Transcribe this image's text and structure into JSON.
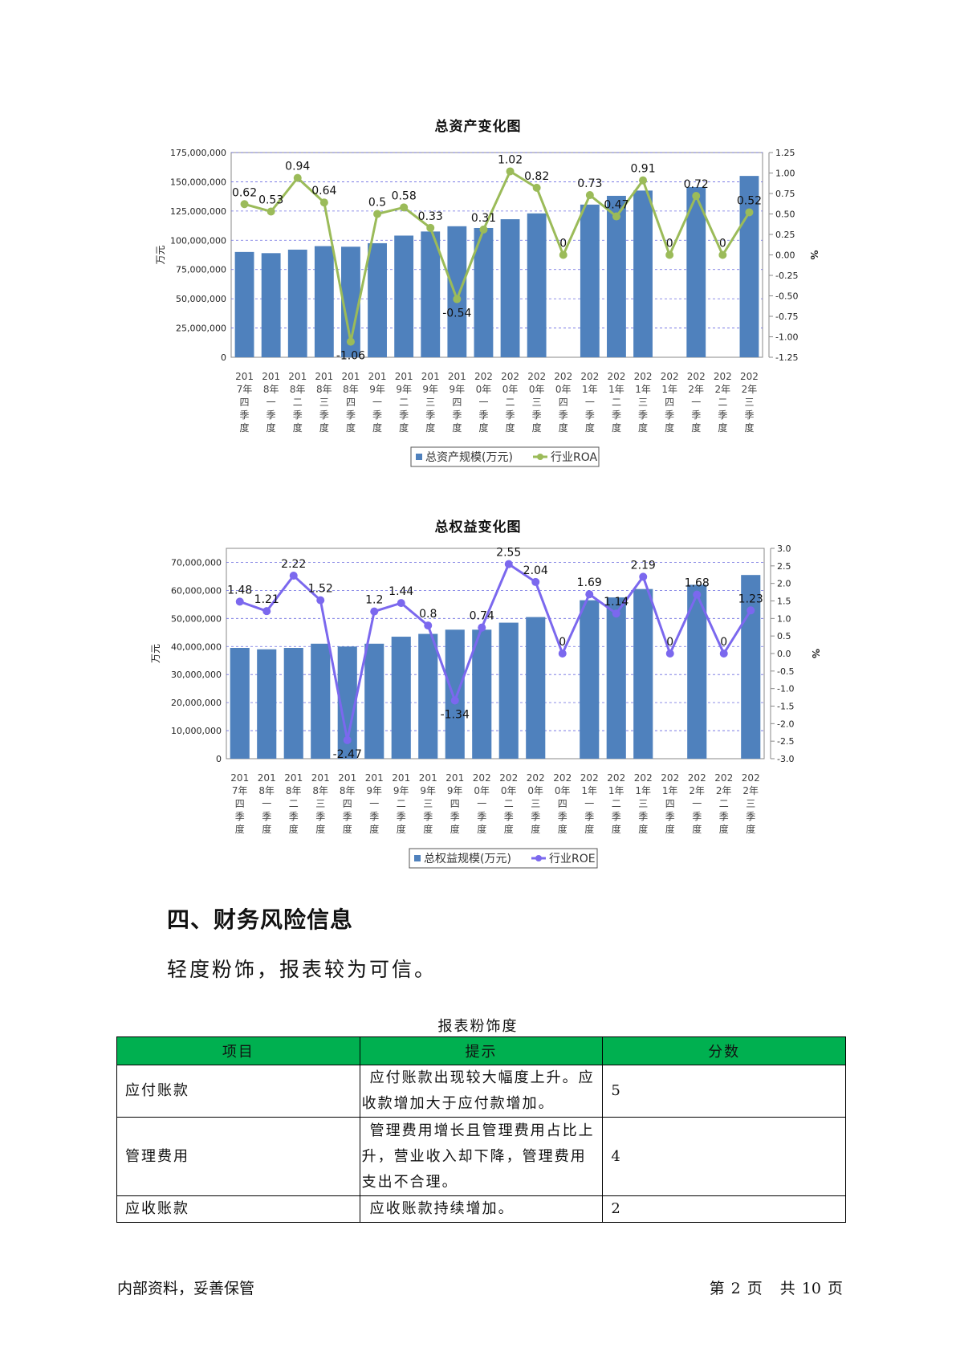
{
  "charts": {
    "assets": {
      "title": "总资产变化图",
      "left_axis_label": "万元",
      "right_axis_label": "%",
      "legend_bar": "总资产规模(万元)",
      "legend_line": "行业ROA"
    },
    "equity": {
      "title": "总权益变化图",
      "left_axis_label": "万元",
      "right_axis_label": "%",
      "legend_bar": "总权益规模(万元)",
      "legend_line": "行业ROE"
    }
  },
  "chart_data": [
    {
      "type": "bar+line",
      "title": "总资产变化图",
      "categories": [
        "2017年四季度",
        "2018年一季度",
        "2018年二季度",
        "2018年三季度",
        "2018年四季度",
        "2019年一季度",
        "2019年二季度",
        "2019年三季度",
        "2019年四季度",
        "2020年一季度",
        "2020年二季度",
        "2020年三季度",
        "2020年四季度",
        "2021年一季度",
        "2021年二季度",
        "2021年三季度",
        "2021年四季度",
        "2022年一季度",
        "2022年二季度",
        "2022年三季度"
      ],
      "category_lines": [
        [
          "201",
          "7年",
          "四",
          "季",
          "度"
        ],
        [
          "201",
          "8年",
          "一",
          "季",
          "度"
        ],
        [
          "201",
          "8年",
          "二",
          "季",
          "度"
        ],
        [
          "201",
          "8年",
          "三",
          "季",
          "度"
        ],
        [
          "201",
          "8年",
          "四",
          "季",
          "度"
        ],
        [
          "201",
          "9年",
          "一",
          "季",
          "度"
        ],
        [
          "201",
          "9年",
          "二",
          "季",
          "度"
        ],
        [
          "201",
          "9年",
          "三",
          "季",
          "度"
        ],
        [
          "201",
          "9年",
          "四",
          "季",
          "度"
        ],
        [
          "202",
          "0年",
          "一",
          "季",
          "度"
        ],
        [
          "202",
          "0年",
          "二",
          "季",
          "度"
        ],
        [
          "202",
          "0年",
          "三",
          "季",
          "度"
        ],
        [
          "202",
          "0年",
          "四",
          "季",
          "度"
        ],
        [
          "202",
          "1年",
          "一",
          "季",
          "度"
        ],
        [
          "202",
          "1年",
          "二",
          "季",
          "度"
        ],
        [
          "202",
          "1年",
          "三",
          "季",
          "度"
        ],
        [
          "202",
          "1年",
          "四",
          "季",
          "度"
        ],
        [
          "202",
          "2年",
          "一",
          "季",
          "度"
        ],
        [
          "202",
          "2年",
          "二",
          "季",
          "度"
        ],
        [
          "202",
          "2年",
          "三",
          "季",
          "度"
        ]
      ],
      "series": [
        {
          "name": "总资产规模(万元)",
          "kind": "bar",
          "axis": "left",
          "color": "#4f81bd",
          "values": [
            90000000,
            89000000,
            92000000,
            95000000,
            94500000,
            97500000,
            104000000,
            107500000,
            112000000,
            110500000,
            118000000,
            123000000,
            null,
            130500000,
            138000000,
            142500000,
            null,
            145500000,
            null,
            155000000
          ]
        },
        {
          "name": "行业ROA",
          "kind": "line",
          "axis": "right",
          "color": "#9bbb59",
          "values": [
            0.62,
            0.53,
            0.94,
            0.64,
            -1.06,
            0.5,
            0.58,
            0.33,
            -0.54,
            0.31,
            1.02,
            0.82,
            0,
            0.73,
            0.47,
            0.91,
            0,
            0.72,
            0,
            0.52
          ],
          "labels": [
            "0.62",
            "0.53",
            "0.94",
            "0.64",
            "-1.06",
            "0.5",
            "0.58",
            "0.33",
            "-0.54",
            "0.31",
            "1.02",
            "0.82",
            "0",
            "0.73",
            "0.47",
            "0.91",
            "0",
            "0.72",
            "0",
            "0.52"
          ]
        }
      ],
      "ylim_left": [
        0,
        175000000
      ],
      "yticks_left": [
        "0",
        "25,000,000",
        "50,000,000",
        "75,000,000",
        "100,000,000",
        "125,000,000",
        "150,000,000",
        "175,000,000"
      ],
      "ylim_right": [
        -1.25,
        1.25
      ],
      "yticks_right": [
        "-1.25",
        "-1.00",
        "-0.75",
        "-0.50",
        "-0.25",
        "0.00",
        "0.25",
        "0.50",
        "0.75",
        "1.00",
        "1.25"
      ],
      "grid": true,
      "legend": "bottom"
    },
    {
      "type": "bar+line",
      "title": "总权益变化图",
      "categories": [
        "2017年四季度",
        "2018年一季度",
        "2018年二季度",
        "2018年三季度",
        "2018年四季度",
        "2019年一季度",
        "2019年二季度",
        "2019年三季度",
        "2019年四季度",
        "2020年一季度",
        "2020年二季度",
        "2020年三季度",
        "2020年四季度",
        "2021年一季度",
        "2021年二季度",
        "2021年三季度",
        "2021年四季度",
        "2022年一季度",
        "2022年二季度",
        "2022年三季度"
      ],
      "category_lines": [
        [
          "201",
          "7年",
          "四",
          "季",
          "度"
        ],
        [
          "201",
          "8年",
          "一",
          "季",
          "度"
        ],
        [
          "201",
          "8年",
          "二",
          "季",
          "度"
        ],
        [
          "201",
          "8年",
          "三",
          "季",
          "度"
        ],
        [
          "201",
          "8年",
          "四",
          "季",
          "度"
        ],
        [
          "201",
          "9年",
          "一",
          "季",
          "度"
        ],
        [
          "201",
          "9年",
          "二",
          "季",
          "度"
        ],
        [
          "201",
          "9年",
          "三",
          "季",
          "度"
        ],
        [
          "201",
          "9年",
          "四",
          "季",
          "度"
        ],
        [
          "202",
          "0年",
          "一",
          "季",
          "度"
        ],
        [
          "202",
          "0年",
          "二",
          "季",
          "度"
        ],
        [
          "202",
          "0年",
          "三",
          "季",
          "度"
        ],
        [
          "202",
          "0年",
          "四",
          "季",
          "度"
        ],
        [
          "202",
          "1年",
          "一",
          "季",
          "度"
        ],
        [
          "202",
          "1年",
          "二",
          "季",
          "度"
        ],
        [
          "202",
          "1年",
          "三",
          "季",
          "度"
        ],
        [
          "202",
          "1年",
          "四",
          "季",
          "度"
        ],
        [
          "202",
          "2年",
          "一",
          "季",
          "度"
        ],
        [
          "202",
          "2年",
          "二",
          "季",
          "度"
        ],
        [
          "202",
          "2年",
          "三",
          "季",
          "度"
        ]
      ],
      "series": [
        {
          "name": "总权益规模(万元)",
          "kind": "bar",
          "axis": "left",
          "color": "#4f81bd",
          "values": [
            39500000,
            39000000,
            39500000,
            41000000,
            40000000,
            41000000,
            43500000,
            44500000,
            46000000,
            46000000,
            48500000,
            50500000,
            null,
            56500000,
            57500000,
            60500000,
            null,
            62000000,
            null,
            65500000
          ]
        },
        {
          "name": "行业ROE",
          "kind": "line",
          "axis": "right",
          "color": "#7b68ee",
          "values": [
            1.48,
            1.21,
            2.22,
            1.52,
            -2.47,
            1.2,
            1.44,
            0.8,
            -1.34,
            0.74,
            2.55,
            2.04,
            0,
            1.69,
            1.14,
            2.19,
            0,
            1.68,
            0,
            1.23
          ],
          "labels": [
            "1.48",
            "1.21",
            "2.22",
            "1.52",
            "-2.47",
            "1.2",
            "1.44",
            "0.8",
            "-1.34",
            "0.74",
            "2.55",
            "2.04",
            "0",
            "1.69",
            "1.14",
            "2.19",
            "0",
            "1.68",
            "0",
            "1.23"
          ]
        }
      ],
      "ylim_left": [
        0,
        75000000
      ],
      "yticks_left": [
        "0",
        "10,000,000",
        "20,000,000",
        "30,000,000",
        "40,000,000",
        "50,000,000",
        "60,000,000",
        "70,000,000"
      ],
      "ylim_right": [
        -3.0,
        3.0
      ],
      "yticks_right": [
        "-3.0",
        "-2.5",
        "-2.0",
        "-1.5",
        "-1.0",
        "-0.5",
        "0.0",
        "0.5",
        "1.0",
        "1.5",
        "2.0",
        "2.5",
        "3.0"
      ],
      "grid": true,
      "legend": "bottom"
    }
  ],
  "section": {
    "heading": "四、财务风险信息",
    "conclusion": "轻度粉饰，报表较为可信。"
  },
  "table": {
    "caption": "报表粉饰度",
    "headers": [
      "项目",
      "提示",
      "分数"
    ],
    "header_color": "#00b050",
    "rows": [
      {
        "item": "应付账款",
        "tip": "应付账款出现较大幅度上升。应收款增加大于应付款增加。",
        "score": "5"
      },
      {
        "item": "管理费用",
        "tip": "管理费用增长且管理费用占比上升，营业收入却下降，管理费用支出不合理。",
        "score": "4"
      },
      {
        "item": "应收账款",
        "tip": "应收账款持续增加。",
        "score": "2"
      }
    ]
  },
  "footer": {
    "left": "内部资料，妥善保管",
    "page_prefix": "第",
    "page_current": "2",
    "page_mid": "页",
    "page_total_prefix": "共",
    "page_total": "10",
    "page_suffix": "页"
  }
}
